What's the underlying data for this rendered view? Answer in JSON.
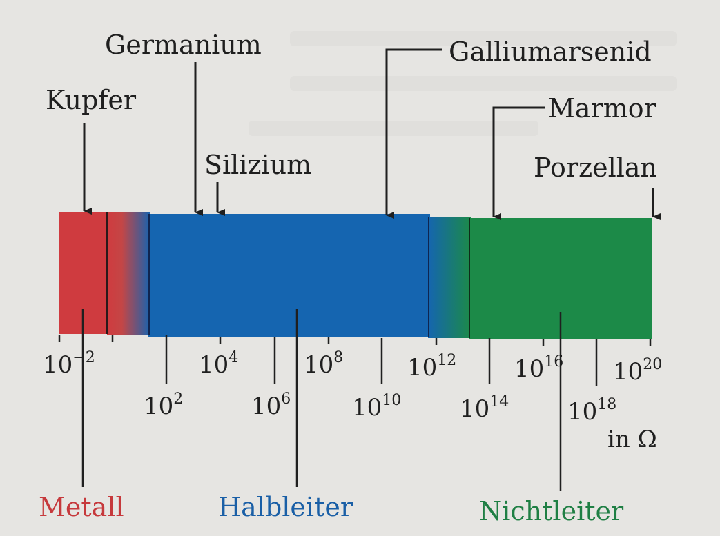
{
  "materials": {
    "kupfer": "Kupfer",
    "germanium": "Germanium",
    "silizium": "Silizium",
    "galliumarsenid": "Galliumarsenid",
    "marmor": "Marmor",
    "porzellan": "Porzellan"
  },
  "ticks": [
    {
      "base": "10",
      "exp": "−2"
    },
    {
      "base": "10",
      "exp": "2"
    },
    {
      "base": "10",
      "exp": "4"
    },
    {
      "base": "10",
      "exp": "6"
    },
    {
      "base": "10",
      "exp": "8"
    },
    {
      "base": "10",
      "exp": "10"
    },
    {
      "base": "10",
      "exp": "12"
    },
    {
      "base": "10",
      "exp": "14"
    },
    {
      "base": "10",
      "exp": "16"
    },
    {
      "base": "10",
      "exp": "18"
    },
    {
      "base": "10",
      "exp": "20"
    }
  ],
  "unit": "in Ω",
  "categories": {
    "metall": "Metall",
    "halbleiter": "Halbleiter",
    "nichtleiter": "Nichtleiter"
  },
  "colors": {
    "metall": "#cf3b3f",
    "halbleiter": "#1565b0",
    "nichtleiter": "#1c8a48"
  }
}
